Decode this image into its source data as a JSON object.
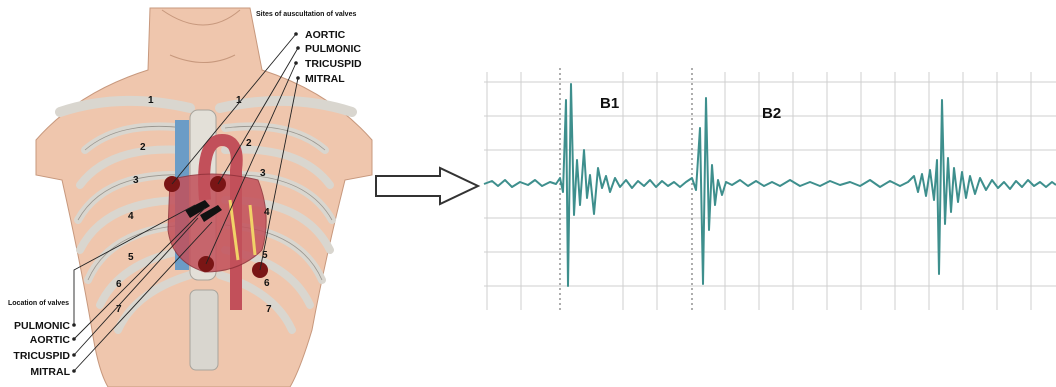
{
  "anatomy": {
    "title_sites": "Sites of auscultation of valves",
    "sites": [
      "AORTIC",
      "PULMONIC",
      "TRICUSPID",
      "MITRAL"
    ],
    "title_locations": "Location of valves",
    "locations": [
      "PULMONIC",
      "AORTIC",
      "TRICUSPID",
      "MITRAL"
    ],
    "rib_numbers_left": [
      "1",
      "2",
      "3",
      "4",
      "5",
      "6",
      "7"
    ],
    "rib_numbers_right": [
      "1",
      "2",
      "3",
      "4",
      "5",
      "6",
      "7"
    ],
    "colors": {
      "skin": "#efc6ad",
      "rib": "#d9d6cf",
      "heart": "#c2505a",
      "vessel_blue": "#6b9cc6",
      "marker": "#7a1515"
    }
  },
  "waveform": {
    "labels": [
      "B1",
      "B2"
    ],
    "colors": {
      "trace": "#3e8f8d",
      "grid": "#cfcfcf",
      "arrow_fill": "#ffffff"
    }
  }
}
